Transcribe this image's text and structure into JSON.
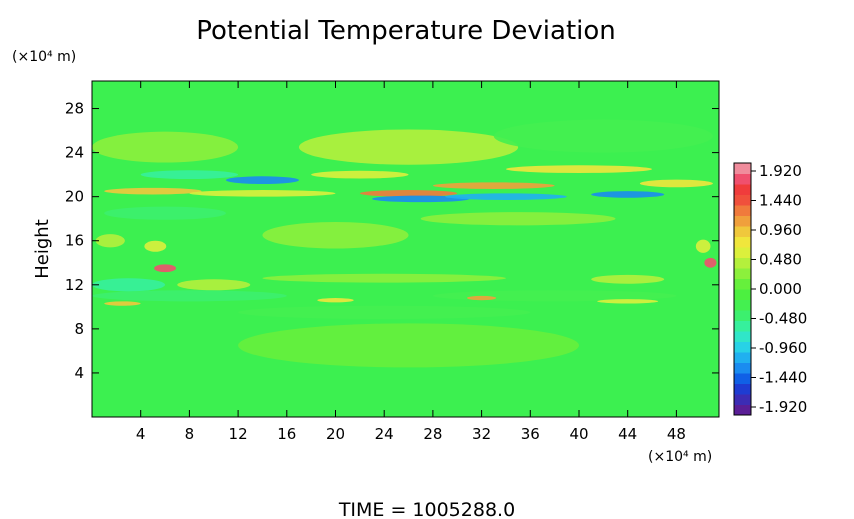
{
  "chart_data": {
    "type": "heatmap",
    "title": "Potential Temperature Deviation",
    "ylabel": "Height",
    "x_unit": "(×10⁴ m)",
    "y_unit": "(×10⁴ m)",
    "xlim": [
      0,
      51.5
    ],
    "ylim": [
      0,
      30.5
    ],
    "x_ticks": [
      4,
      8,
      12,
      16,
      20,
      24,
      28,
      32,
      36,
      40,
      44,
      48
    ],
    "y_ticks": [
      4,
      8,
      12,
      16,
      20,
      24,
      28
    ],
    "colorbar": {
      "ticks": [
        "1.920",
        "1.440",
        "0.960",
        "0.480",
        "0.000",
        "-0.480",
        "-0.960",
        "-1.440",
        "-1.920"
      ],
      "vmin": -2.16,
      "vmax": 2.16,
      "colors": [
        "#5a1e96",
        "#3c2cb4",
        "#1e3cd2",
        "#1060e6",
        "#1a8cf0",
        "#20b0f0",
        "#28d2e6",
        "#30e6c8",
        "#36f09c",
        "#3cf06e",
        "#44f050",
        "#4cf040",
        "#66f03c",
        "#8cf03c",
        "#b4f03c",
        "#dcf03c",
        "#f0e63c",
        "#f0c83c",
        "#f0a03c",
        "#f07a3c",
        "#f0503c",
        "#f03c3c",
        "#f0506e",
        "#f08c9c"
      ]
    },
    "features": [
      {
        "x": 26,
        "y": 24.5,
        "value": 0.45,
        "sx": 9,
        "sy": 1.6
      },
      {
        "x": 6,
        "y": 24.5,
        "value": 0.3,
        "sx": 6,
        "sy": 1.4
      },
      {
        "x": 42,
        "y": 25.5,
        "value": -0.25,
        "sx": 9,
        "sy": 1.5
      },
      {
        "x": 14,
        "y": 21.5,
        "value": -1.4,
        "sx": 3,
        "sy": 0.35
      },
      {
        "x": 8,
        "y": 22.0,
        "value": -0.6,
        "sx": 4,
        "sy": 0.4
      },
      {
        "x": 22,
        "y": 22.0,
        "value": 0.7,
        "sx": 4,
        "sy": 0.35
      },
      {
        "x": 40,
        "y": 22.5,
        "value": 0.8,
        "sx": 6,
        "sy": 0.35
      },
      {
        "x": 5,
        "y": 20.5,
        "value": 0.9,
        "sx": 4,
        "sy": 0.3
      },
      {
        "x": 14,
        "y": 20.3,
        "value": 0.7,
        "sx": 6,
        "sy": 0.3
      },
      {
        "x": 26,
        "y": 20.3,
        "value": 1.3,
        "sx": 4,
        "sy": 0.3
      },
      {
        "x": 27,
        "y": 19.8,
        "value": -1.3,
        "sx": 4,
        "sy": 0.3
      },
      {
        "x": 33,
        "y": 21.0,
        "value": 1.1,
        "sx": 5,
        "sy": 0.3
      },
      {
        "x": 34,
        "y": 20.0,
        "value": -1.2,
        "sx": 5,
        "sy": 0.3
      },
      {
        "x": 44,
        "y": 20.2,
        "value": -1.4,
        "sx": 3,
        "sy": 0.3
      },
      {
        "x": 48,
        "y": 21.2,
        "value": 0.8,
        "sx": 3,
        "sy": 0.35
      },
      {
        "x": 6,
        "y": 18.5,
        "value": -0.4,
        "sx": 5,
        "sy": 0.6
      },
      {
        "x": 35,
        "y": 18.0,
        "value": 0.35,
        "sx": 8,
        "sy": 0.6
      },
      {
        "x": 20,
        "y": 16.5,
        "value": 0.3,
        "sx": 6,
        "sy": 1.2
      },
      {
        "x": 5.2,
        "y": 15.5,
        "value": 0.7,
        "sx": 0.9,
        "sy": 0.5
      },
      {
        "x": 6.0,
        "y": 13.5,
        "value": 1.9,
        "sx": 0.9,
        "sy": 0.35
      },
      {
        "x": 1.5,
        "y": 16.0,
        "value": 0.5,
        "sx": 1.2,
        "sy": 0.6
      },
      {
        "x": 50.8,
        "y": 14.0,
        "value": 1.8,
        "sx": 0.5,
        "sy": 0.45
      },
      {
        "x": 50.2,
        "y": 15.5,
        "value": 0.6,
        "sx": 0.6,
        "sy": 0.6
      },
      {
        "x": 3,
        "y": 12.0,
        "value": -0.6,
        "sx": 3,
        "sy": 0.6
      },
      {
        "x": 10,
        "y": 12.0,
        "value": 0.4,
        "sx": 3,
        "sy": 0.5
      },
      {
        "x": 24,
        "y": 12.6,
        "value": 0.35,
        "sx": 10,
        "sy": 0.4
      },
      {
        "x": 44,
        "y": 12.5,
        "value": 0.5,
        "sx": 3,
        "sy": 0.4
      },
      {
        "x": 8,
        "y": 11.0,
        "value": -0.45,
        "sx": 8,
        "sy": 0.5
      },
      {
        "x": 38,
        "y": 11.0,
        "value": -0.35,
        "sx": 10,
        "sy": 0.5
      },
      {
        "x": 2.5,
        "y": 10.3,
        "value": 0.9,
        "sx": 1.5,
        "sy": 0.2
      },
      {
        "x": 20,
        "y": 10.6,
        "value": 0.8,
        "sx": 1.5,
        "sy": 0.2
      },
      {
        "x": 32,
        "y": 10.8,
        "value": 1.2,
        "sx": 1.2,
        "sy": 0.2
      },
      {
        "x": 44,
        "y": 10.5,
        "value": 0.7,
        "sx": 2.5,
        "sy": 0.2
      },
      {
        "x": 24,
        "y": 9.5,
        "value": -0.3,
        "sx": 12,
        "sy": 0.6
      },
      {
        "x": 26,
        "y": 6.5,
        "value": 0.12,
        "sx": 14,
        "sy": 2
      }
    ]
  },
  "time_label": "TIME =  1005288.0"
}
